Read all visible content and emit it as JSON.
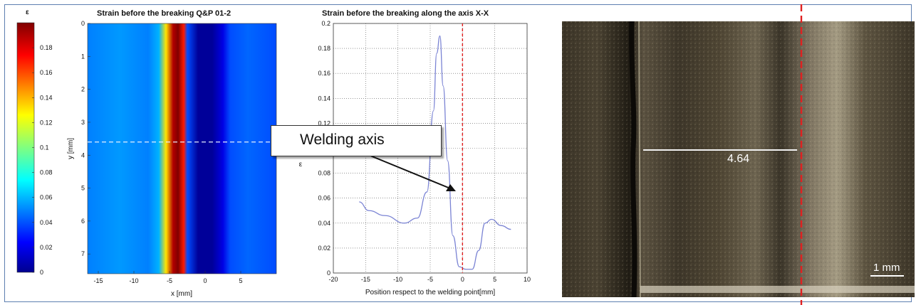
{
  "colorbar": {
    "header": "ε",
    "ticks": [
      "0.18",
      "0.16",
      "0.14",
      "0.12",
      "0.1",
      "0.08",
      "0.06",
      "0.04",
      "0.02",
      "0"
    ]
  },
  "heatmap": {
    "title": "Strain before the breaking Q&P 01-2",
    "xlabel": "x [mm]",
    "ylabel": "y [mm]",
    "xticks": [
      "-15",
      "-10",
      "-5",
      "0",
      "5"
    ],
    "yticks": [
      "0",
      "1",
      "2",
      "3",
      "4",
      "5",
      "6",
      "7"
    ]
  },
  "lineplot": {
    "title": "Strain before the breaking along the axis X-X",
    "xlabel": "Position respect to the welding point[mm]",
    "ylabel_visible": "ε",
    "xticks": [
      "-20",
      "-15",
      "-10",
      "-5",
      "0",
      "5",
      "10"
    ],
    "yticks": [
      "0",
      "0.02",
      "0.04",
      "0.06",
      "0.08",
      "0.1",
      "0.12",
      "0.14",
      "0.16",
      "0.18",
      "0.2"
    ]
  },
  "annotation": {
    "label": "Welding axis"
  },
  "photo": {
    "measurement": "4.64",
    "scale_label": "1 mm",
    "axis_line_color": "#e02020"
  },
  "chart_data": [
    {
      "type": "heatmap",
      "title": "Strain before the breaking Q&P 01-2",
      "xlabel": "x [mm]",
      "ylabel": "y [mm]",
      "xlim": [
        -16.5,
        10
      ],
      "ylim": [
        7.6,
        0
      ],
      "colorbar_range": [
        0,
        0.2
      ],
      "colormap": "jet",
      "strain_profile_along_x": {
        "x": [
          -16.5,
          -12,
          -8,
          -6.5,
          -5.5,
          -4.5,
          -3.8,
          -3,
          -2.5,
          -1,
          1,
          2.5,
          3.5,
          6,
          10
        ],
        "value": [
          0.05,
          0.055,
          0.05,
          0.06,
          0.13,
          0.19,
          0.2,
          0.17,
          0.04,
          0.005,
          0.005,
          0.02,
          0.04,
          0.045,
          0.04
        ]
      },
      "dashed_line_y": 3.6
    },
    {
      "type": "line",
      "title": "Strain before the breaking along the axis X-X",
      "xlabel": "Position respect to the welding point[mm]",
      "ylabel": "ε",
      "xlim": [
        -20,
        10
      ],
      "ylim": [
        0,
        0.2
      ],
      "grid": true,
      "series": [
        {
          "color": "#7b84d4",
          "x": [
            -16,
            -14.5,
            -12,
            -9,
            -7,
            -5.5,
            -4.5,
            -4,
            -3.5,
            -3,
            -2.3,
            -1.5,
            -0.5,
            0.5,
            1.5,
            2.5,
            3.5,
            4.5,
            6,
            7.5
          ],
          "y": [
            0.057,
            0.05,
            0.046,
            0.04,
            0.044,
            0.065,
            0.13,
            0.176,
            0.19,
            0.15,
            0.09,
            0.03,
            0.005,
            0.003,
            0.003,
            0.018,
            0.04,
            0.043,
            0.038,
            0.035
          ]
        }
      ],
      "vertical_line": {
        "x": 0,
        "color": "#e02020",
        "style": "dashed"
      }
    }
  ]
}
